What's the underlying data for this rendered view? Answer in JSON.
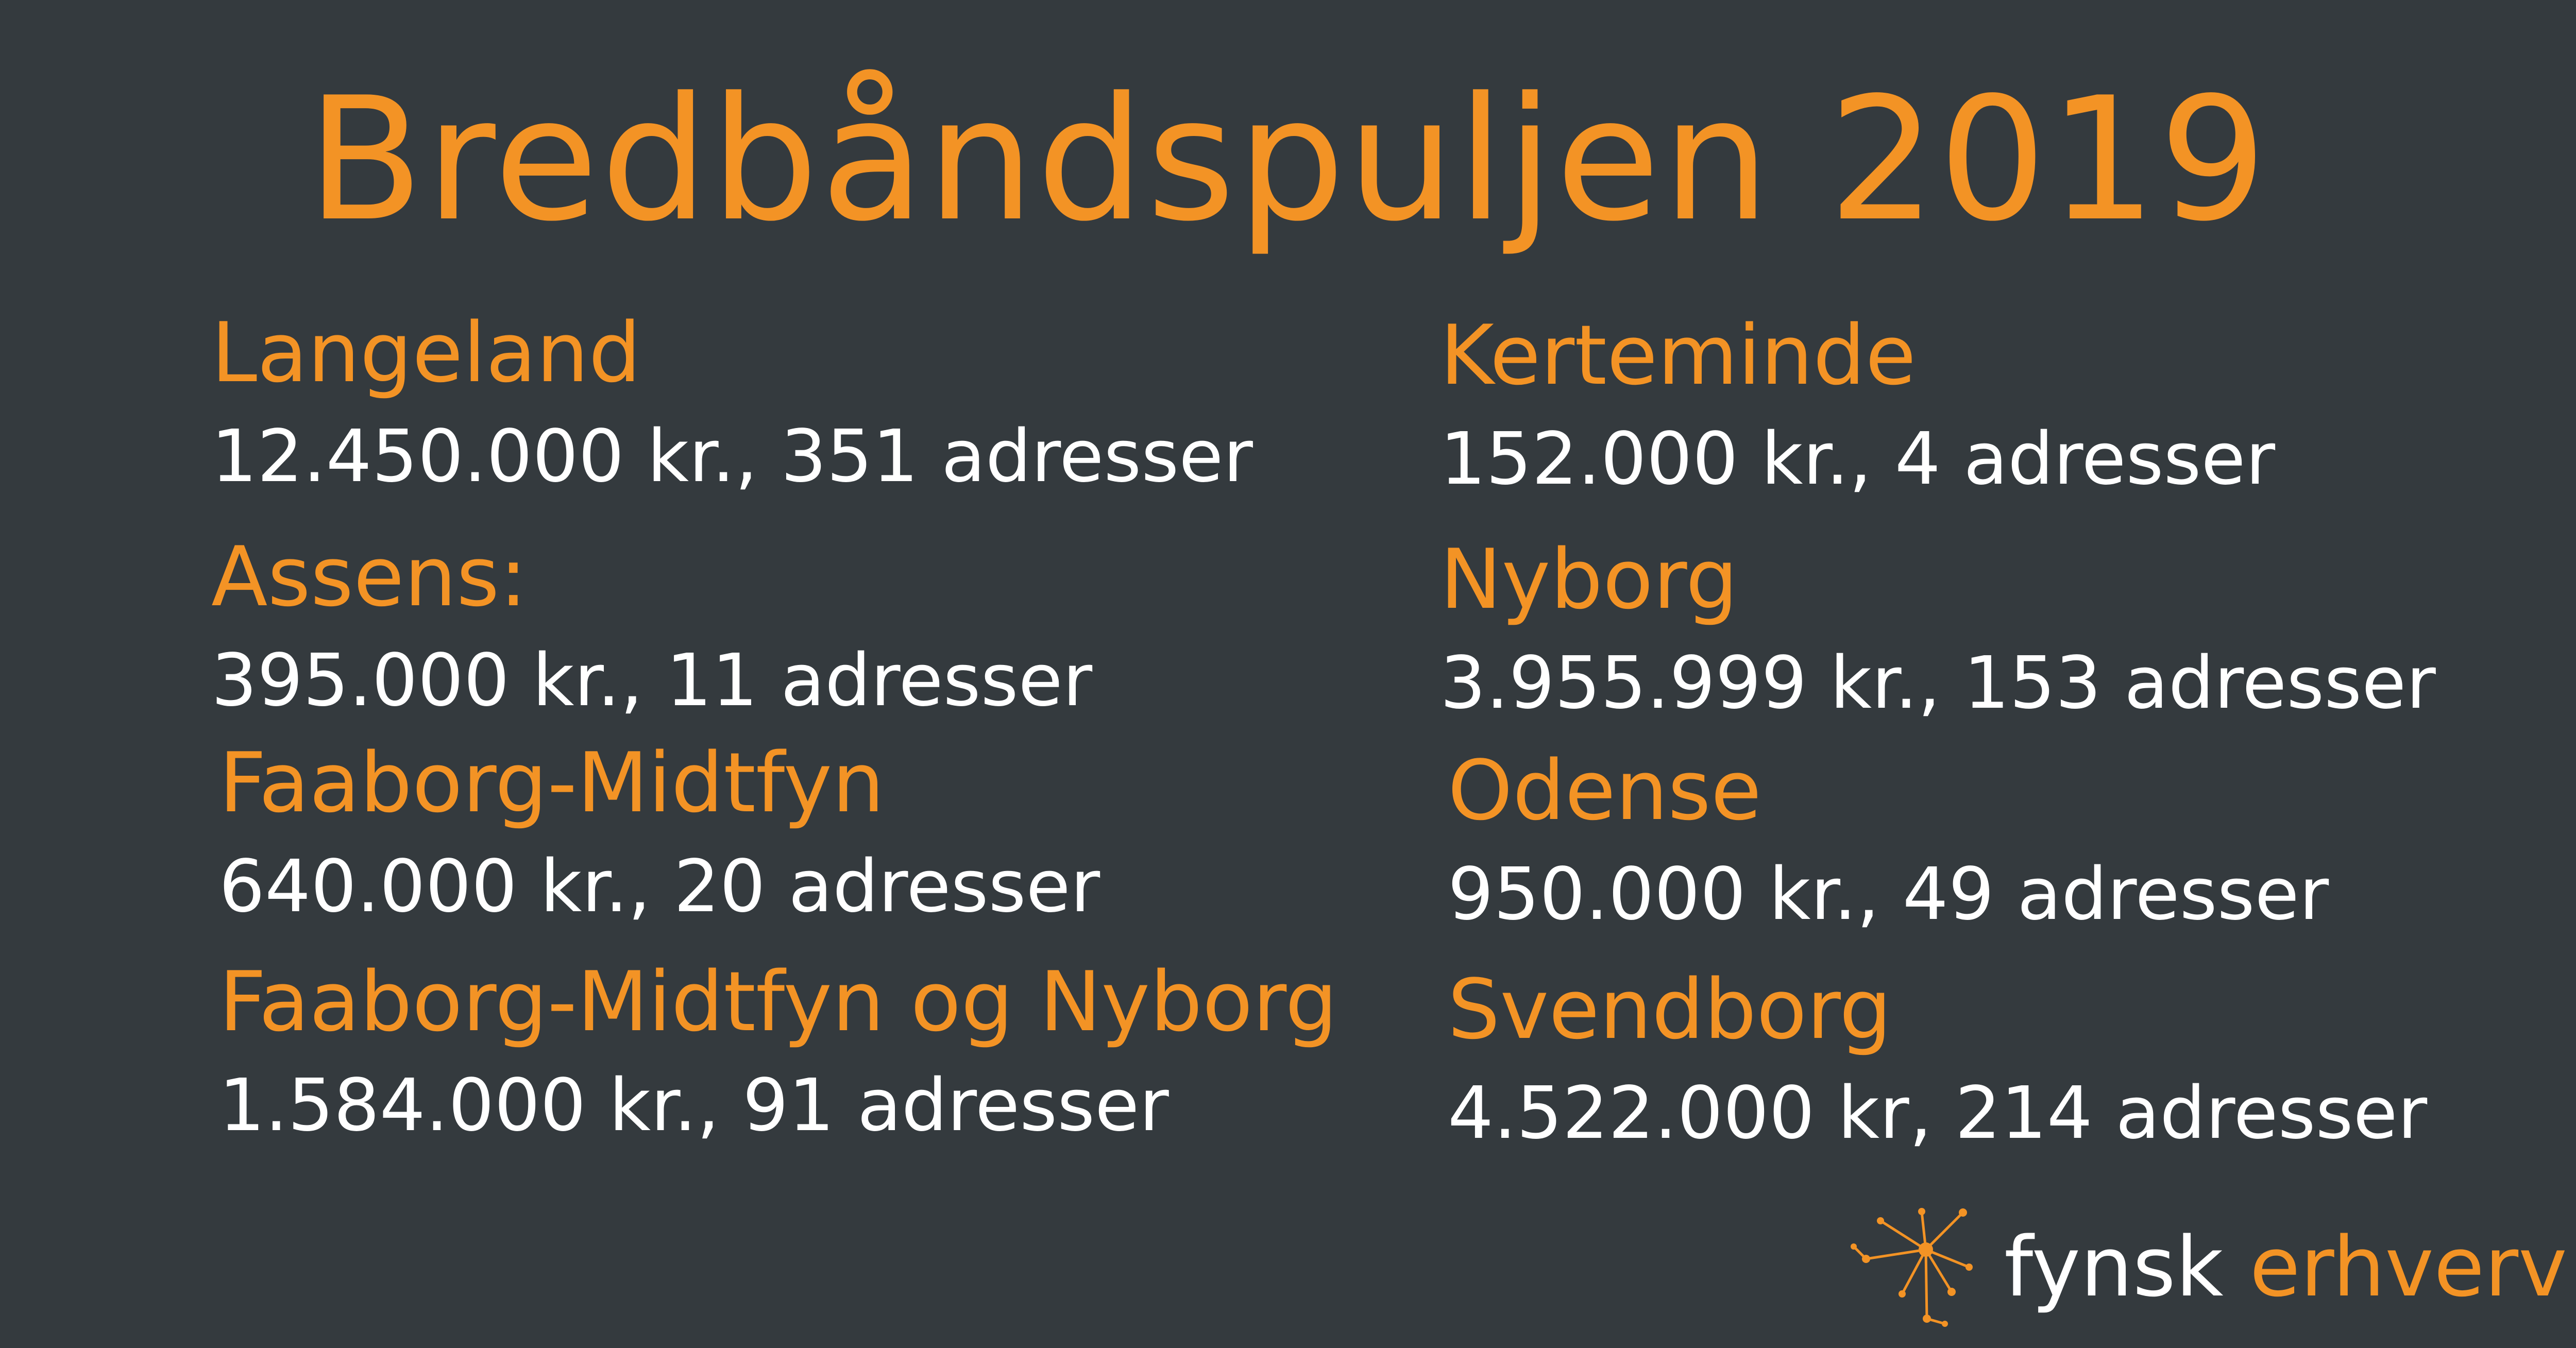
{
  "title": "Bredbåndspuljen 2019",
  "entries": [
    {
      "name": "Langeland",
      "value": "12.450.000 kr., 351 adresser"
    },
    {
      "name": "Assens:",
      "value": "395.000 kr., 11 adresser"
    },
    {
      "name": "Faaborg-Midtfyn",
      "value": "640.000 kr., 20 adresser"
    },
    {
      "name": "Faaborg-Midtfyn og Nyborg",
      "value": "1.584.000 kr., 91 adresser"
    },
    {
      "name": "Kerteminde",
      "value": "152.000 kr., 4 adresser"
    },
    {
      "name": "Nyborg",
      "value": "3.955.999 kr., 153 adresser"
    },
    {
      "name": "Odense",
      "value": "950.000 kr., 49 adresser"
    },
    {
      "name": "Svendborg",
      "value": "4.522.000 kr, 214 adresser"
    }
  ],
  "logo": {
    "word1": "fynsk",
    "word2": "erhverv",
    "icon": "network-star-icon"
  },
  "colors": {
    "background": "#343a3e",
    "accent": "#f39325",
    "text": "#ffffff"
  }
}
